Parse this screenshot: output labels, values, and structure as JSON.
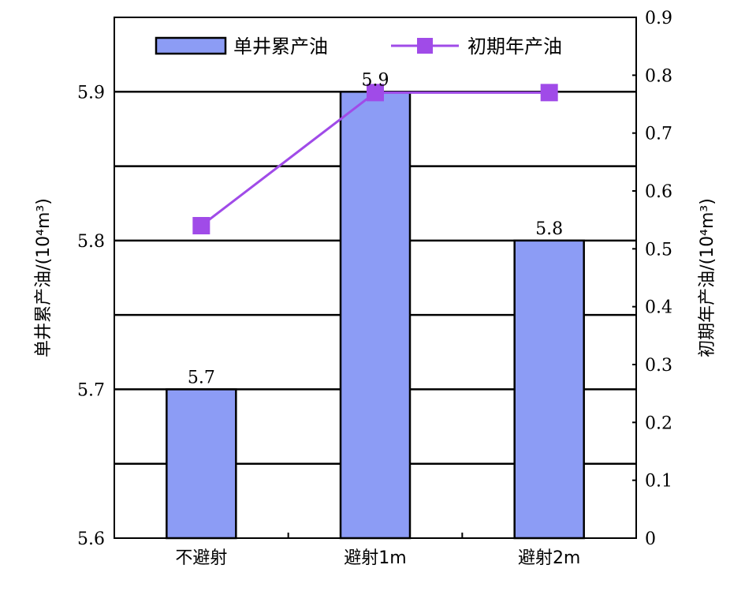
{
  "chart_data": {
    "type": "bar",
    "categories": [
      "不避射",
      "避射1m",
      "避射2m"
    ],
    "series": [
      {
        "name": "单井累产油",
        "type": "bar",
        "axis": "left",
        "values": [
          5.7,
          5.9,
          5.8
        ],
        "data_labels": [
          "5.7",
          "5.9",
          "5.8"
        ],
        "color": "#8c9cf5"
      },
      {
        "name": "初期年产油",
        "type": "line",
        "axis": "right",
        "values": [
          0.54,
          0.77,
          0.77
        ],
        "color": "#a04be8"
      }
    ],
    "y_left": {
      "label": "单井累产油/(10⁴m³)",
      "range": [
        5.6,
        5.95
      ],
      "ticks": [
        "5.6",
        "5.7",
        "5.8",
        "5.9"
      ],
      "tick_values": [
        5.6,
        5.7,
        5.8,
        5.9
      ]
    },
    "y_right": {
      "label": "初期年产油/(10⁴m³)",
      "range": [
        0,
        0.9
      ],
      "ticks": [
        "0",
        "0.1",
        "0.2",
        "0.3",
        "0.4",
        "0.5",
        "0.6",
        "0.7",
        "0.8",
        "0.9"
      ],
      "tick_values": [
        0,
        0.1,
        0.2,
        0.3,
        0.4,
        0.5,
        0.6,
        0.7,
        0.8,
        0.9
      ]
    },
    "gridlines_left": [
      5.65,
      5.7,
      5.75,
      5.8,
      5.85,
      5.9
    ],
    "grid": true,
    "legend": {
      "placement": "top",
      "entries": [
        "单井累产油",
        "初期年产油"
      ]
    }
  }
}
